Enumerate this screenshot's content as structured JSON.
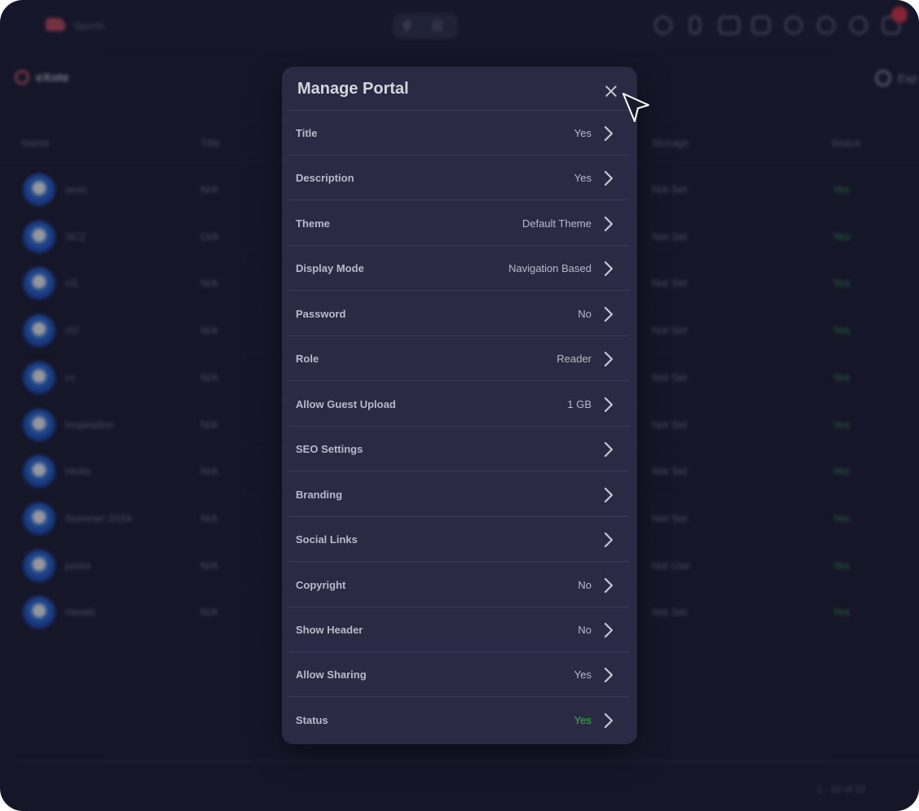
{
  "background": {
    "brand": "Sports",
    "toolbar_title": "eXote",
    "export_label": "Exp",
    "columns": [
      "Name",
      "Title",
      "Storage",
      "Status"
    ],
    "rows": [
      {
        "name": "sess",
        "title": "N/A",
        "storage": "Not Set",
        "status": "Yes"
      },
      {
        "name": "SC2",
        "title": "O/A",
        "storage": "Not Set",
        "status": "Yes"
      },
      {
        "name": "cl1",
        "title": "N/A",
        "storage": "Not Set",
        "status": "Yes"
      },
      {
        "name": "cl2",
        "title": "N/A",
        "storage": "Not Set",
        "status": "Yes"
      },
      {
        "name": "cc",
        "title": "N/A",
        "storage": "Not Set",
        "status": "Yes"
      },
      {
        "name": "Inspiration",
        "title": "N/A",
        "storage": "Not Set",
        "status": "Yes"
      },
      {
        "name": "Hicks",
        "title": "N/A",
        "storage": "Not Set",
        "status": "Yes"
      },
      {
        "name": "Summer 2024",
        "title": "N/A",
        "storage": "Not Set",
        "status": "Yes"
      },
      {
        "name": "junior",
        "title": "N/A",
        "storage": "Not Use",
        "status": "Yes"
      },
      {
        "name": "Hoods",
        "title": "N/A",
        "storage": "Not Set",
        "status": "Yes"
      }
    ],
    "footer": "1 - 10 of 32"
  },
  "modal": {
    "title": "Manage Portal",
    "close_icon": "close-icon",
    "settings": [
      {
        "label": "Title",
        "value": "Yes"
      },
      {
        "label": "Description",
        "value": "Yes"
      },
      {
        "label": "Theme",
        "value": "Default Theme"
      },
      {
        "label": "Display Mode",
        "value": "Navigation Based"
      },
      {
        "label": "Password",
        "value": "No"
      },
      {
        "label": "Role",
        "value": "Reader"
      },
      {
        "label": "Allow Guest Upload",
        "value": "1 GB"
      },
      {
        "label": "SEO Settings",
        "value": ""
      },
      {
        "label": "Branding",
        "value": ""
      },
      {
        "label": "Social Links",
        "value": ""
      },
      {
        "label": "Copyright",
        "value": "No"
      },
      {
        "label": "Show Header",
        "value": "No"
      },
      {
        "label": "Allow Sharing",
        "value": "Yes"
      },
      {
        "label": "Status",
        "value": "Yes"
      }
    ]
  },
  "colors": {
    "modal_bg": "#2a2a44",
    "page_bg": "#151628",
    "status_green": "#39b54a",
    "notification_red": "#e2323e"
  }
}
